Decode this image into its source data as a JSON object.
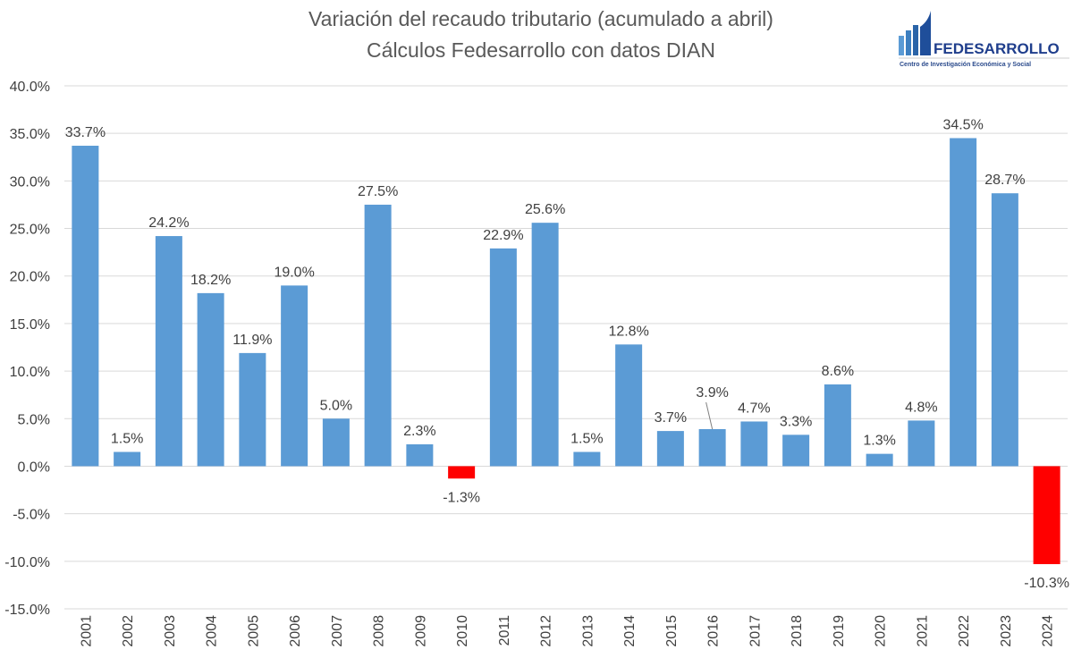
{
  "logo": {
    "name": "FEDESARROLLO",
    "tagline": "Centro de Investigación Económica y Social"
  },
  "chart_data": {
    "type": "bar",
    "title": "Variación del recaudo tributario (acumulado a abril)",
    "subtitle": "Cálculos Fedesarrollo con datos DIAN",
    "xlabel": "",
    "ylabel": "",
    "ylim": [
      -15,
      40
    ],
    "yticks": [
      40,
      35,
      30,
      25,
      20,
      15,
      10,
      5,
      0,
      -5,
      -10,
      -15
    ],
    "ytick_labels": [
      "40.0%",
      "35.0%",
      "30.0%",
      "25.0%",
      "20.0%",
      "15.0%",
      "10.0%",
      "5.0%",
      "0.0%",
      "-5.0%",
      "-10.0%",
      "-15.0%"
    ],
    "grid": true,
    "categories": [
      "2001",
      "2002",
      "2003",
      "2004",
      "2005",
      "2006",
      "2007",
      "2008",
      "2009",
      "2010",
      "2011",
      "2012",
      "2013",
      "2014",
      "2015",
      "2016",
      "2017",
      "2018",
      "2019",
      "2020",
      "2021",
      "2022",
      "2023",
      "2024"
    ],
    "values": [
      33.7,
      1.5,
      24.2,
      18.2,
      11.9,
      19.0,
      5.0,
      27.5,
      2.3,
      -1.3,
      22.9,
      25.6,
      1.5,
      12.8,
      3.7,
      3.9,
      4.7,
      3.3,
      8.6,
      1.3,
      4.8,
      34.5,
      28.7,
      -10.3
    ],
    "data_labels": [
      "33.7%",
      "1.5%",
      "24.2%",
      "18.2%",
      "11.9%",
      "19.0%",
      "5.0%",
      "27.5%",
      "2.3%",
      "-1.3%",
      "22.9%",
      "25.6%",
      "1.5%",
      "12.8%",
      "3.7%",
      "3.9%",
      "4.7%",
      "3.3%",
      "8.6%",
      "1.3%",
      "4.8%",
      "34.5%",
      "28.7%",
      "-10.3%"
    ],
    "colors": {
      "positive": "#5B9BD5",
      "negative": "#FF0000",
      "grid": "#D9D9D9",
      "text": "#404040"
    }
  }
}
